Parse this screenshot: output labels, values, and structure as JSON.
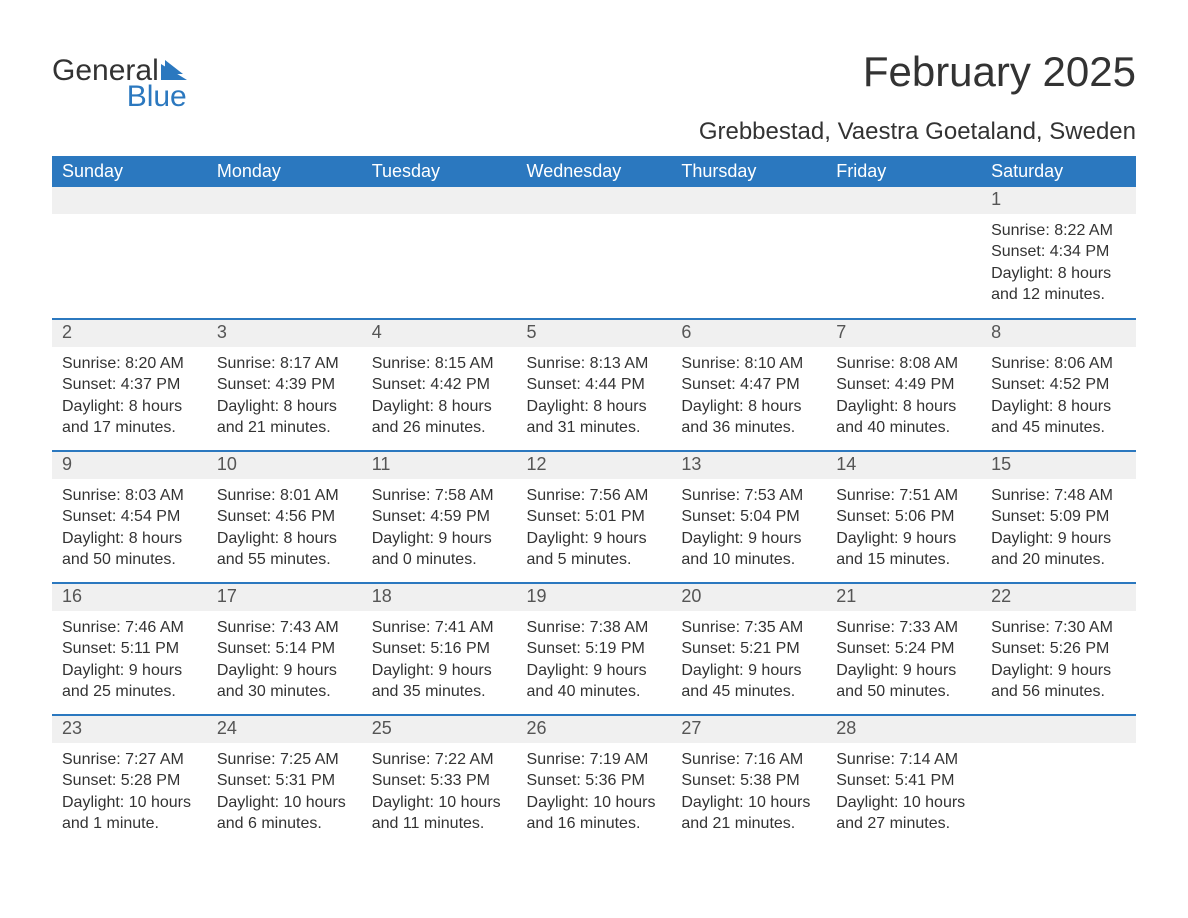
{
  "brand": {
    "part1": "General",
    "part2": "Blue",
    "accent": "#2b78bf"
  },
  "title": "February 2025",
  "location": "Grebbestad, Vaestra Goetaland, Sweden",
  "colors": {
    "header_bg": "#2b78bf",
    "header_text": "#ffffff",
    "daynum_bg": "#f0f0f0",
    "text": "#333333",
    "row_divider": "#2b78bf",
    "page_bg": "#ffffff"
  },
  "typography": {
    "title_fontsize": 42,
    "location_fontsize": 24,
    "header_fontsize": 18,
    "daynum_fontsize": 18,
    "body_fontsize": 16
  },
  "weekdays": [
    "Sunday",
    "Monday",
    "Tuesday",
    "Wednesday",
    "Thursday",
    "Friday",
    "Saturday"
  ],
  "weeks": [
    [
      null,
      null,
      null,
      null,
      null,
      null,
      {
        "n": "1",
        "sunrise": "Sunrise: 8:22 AM",
        "sunset": "Sunset: 4:34 PM",
        "day": "Daylight: 8 hours and 12 minutes."
      }
    ],
    [
      {
        "n": "2",
        "sunrise": "Sunrise: 8:20 AM",
        "sunset": "Sunset: 4:37 PM",
        "day": "Daylight: 8 hours and 17 minutes."
      },
      {
        "n": "3",
        "sunrise": "Sunrise: 8:17 AM",
        "sunset": "Sunset: 4:39 PM",
        "day": "Daylight: 8 hours and 21 minutes."
      },
      {
        "n": "4",
        "sunrise": "Sunrise: 8:15 AM",
        "sunset": "Sunset: 4:42 PM",
        "day": "Daylight: 8 hours and 26 minutes."
      },
      {
        "n": "5",
        "sunrise": "Sunrise: 8:13 AM",
        "sunset": "Sunset: 4:44 PM",
        "day": "Daylight: 8 hours and 31 minutes."
      },
      {
        "n": "6",
        "sunrise": "Sunrise: 8:10 AM",
        "sunset": "Sunset: 4:47 PM",
        "day": "Daylight: 8 hours and 36 minutes."
      },
      {
        "n": "7",
        "sunrise": "Sunrise: 8:08 AM",
        "sunset": "Sunset: 4:49 PM",
        "day": "Daylight: 8 hours and 40 minutes."
      },
      {
        "n": "8",
        "sunrise": "Sunrise: 8:06 AM",
        "sunset": "Sunset: 4:52 PM",
        "day": "Daylight: 8 hours and 45 minutes."
      }
    ],
    [
      {
        "n": "9",
        "sunrise": "Sunrise: 8:03 AM",
        "sunset": "Sunset: 4:54 PM",
        "day": "Daylight: 8 hours and 50 minutes."
      },
      {
        "n": "10",
        "sunrise": "Sunrise: 8:01 AM",
        "sunset": "Sunset: 4:56 PM",
        "day": "Daylight: 8 hours and 55 minutes."
      },
      {
        "n": "11",
        "sunrise": "Sunrise: 7:58 AM",
        "sunset": "Sunset: 4:59 PM",
        "day": "Daylight: 9 hours and 0 minutes."
      },
      {
        "n": "12",
        "sunrise": "Sunrise: 7:56 AM",
        "sunset": "Sunset: 5:01 PM",
        "day": "Daylight: 9 hours and 5 minutes."
      },
      {
        "n": "13",
        "sunrise": "Sunrise: 7:53 AM",
        "sunset": "Sunset: 5:04 PM",
        "day": "Daylight: 9 hours and 10 minutes."
      },
      {
        "n": "14",
        "sunrise": "Sunrise: 7:51 AM",
        "sunset": "Sunset: 5:06 PM",
        "day": "Daylight: 9 hours and 15 minutes."
      },
      {
        "n": "15",
        "sunrise": "Sunrise: 7:48 AM",
        "sunset": "Sunset: 5:09 PM",
        "day": "Daylight: 9 hours and 20 minutes."
      }
    ],
    [
      {
        "n": "16",
        "sunrise": "Sunrise: 7:46 AM",
        "sunset": "Sunset: 5:11 PM",
        "day": "Daylight: 9 hours and 25 minutes."
      },
      {
        "n": "17",
        "sunrise": "Sunrise: 7:43 AM",
        "sunset": "Sunset: 5:14 PM",
        "day": "Daylight: 9 hours and 30 minutes."
      },
      {
        "n": "18",
        "sunrise": "Sunrise: 7:41 AM",
        "sunset": "Sunset: 5:16 PM",
        "day": "Daylight: 9 hours and 35 minutes."
      },
      {
        "n": "19",
        "sunrise": "Sunrise: 7:38 AM",
        "sunset": "Sunset: 5:19 PM",
        "day": "Daylight: 9 hours and 40 minutes."
      },
      {
        "n": "20",
        "sunrise": "Sunrise: 7:35 AM",
        "sunset": "Sunset: 5:21 PM",
        "day": "Daylight: 9 hours and 45 minutes."
      },
      {
        "n": "21",
        "sunrise": "Sunrise: 7:33 AM",
        "sunset": "Sunset: 5:24 PM",
        "day": "Daylight: 9 hours and 50 minutes."
      },
      {
        "n": "22",
        "sunrise": "Sunrise: 7:30 AM",
        "sunset": "Sunset: 5:26 PM",
        "day": "Daylight: 9 hours and 56 minutes."
      }
    ],
    [
      {
        "n": "23",
        "sunrise": "Sunrise: 7:27 AM",
        "sunset": "Sunset: 5:28 PM",
        "day": "Daylight: 10 hours and 1 minute."
      },
      {
        "n": "24",
        "sunrise": "Sunrise: 7:25 AM",
        "sunset": "Sunset: 5:31 PM",
        "day": "Daylight: 10 hours and 6 minutes."
      },
      {
        "n": "25",
        "sunrise": "Sunrise: 7:22 AM",
        "sunset": "Sunset: 5:33 PM",
        "day": "Daylight: 10 hours and 11 minutes."
      },
      {
        "n": "26",
        "sunrise": "Sunrise: 7:19 AM",
        "sunset": "Sunset: 5:36 PM",
        "day": "Daylight: 10 hours and 16 minutes."
      },
      {
        "n": "27",
        "sunrise": "Sunrise: 7:16 AM",
        "sunset": "Sunset: 5:38 PM",
        "day": "Daylight: 10 hours and 21 minutes."
      },
      {
        "n": "28",
        "sunrise": "Sunrise: 7:14 AM",
        "sunset": "Sunset: 5:41 PM",
        "day": "Daylight: 10 hours and 27 minutes."
      },
      null
    ]
  ]
}
